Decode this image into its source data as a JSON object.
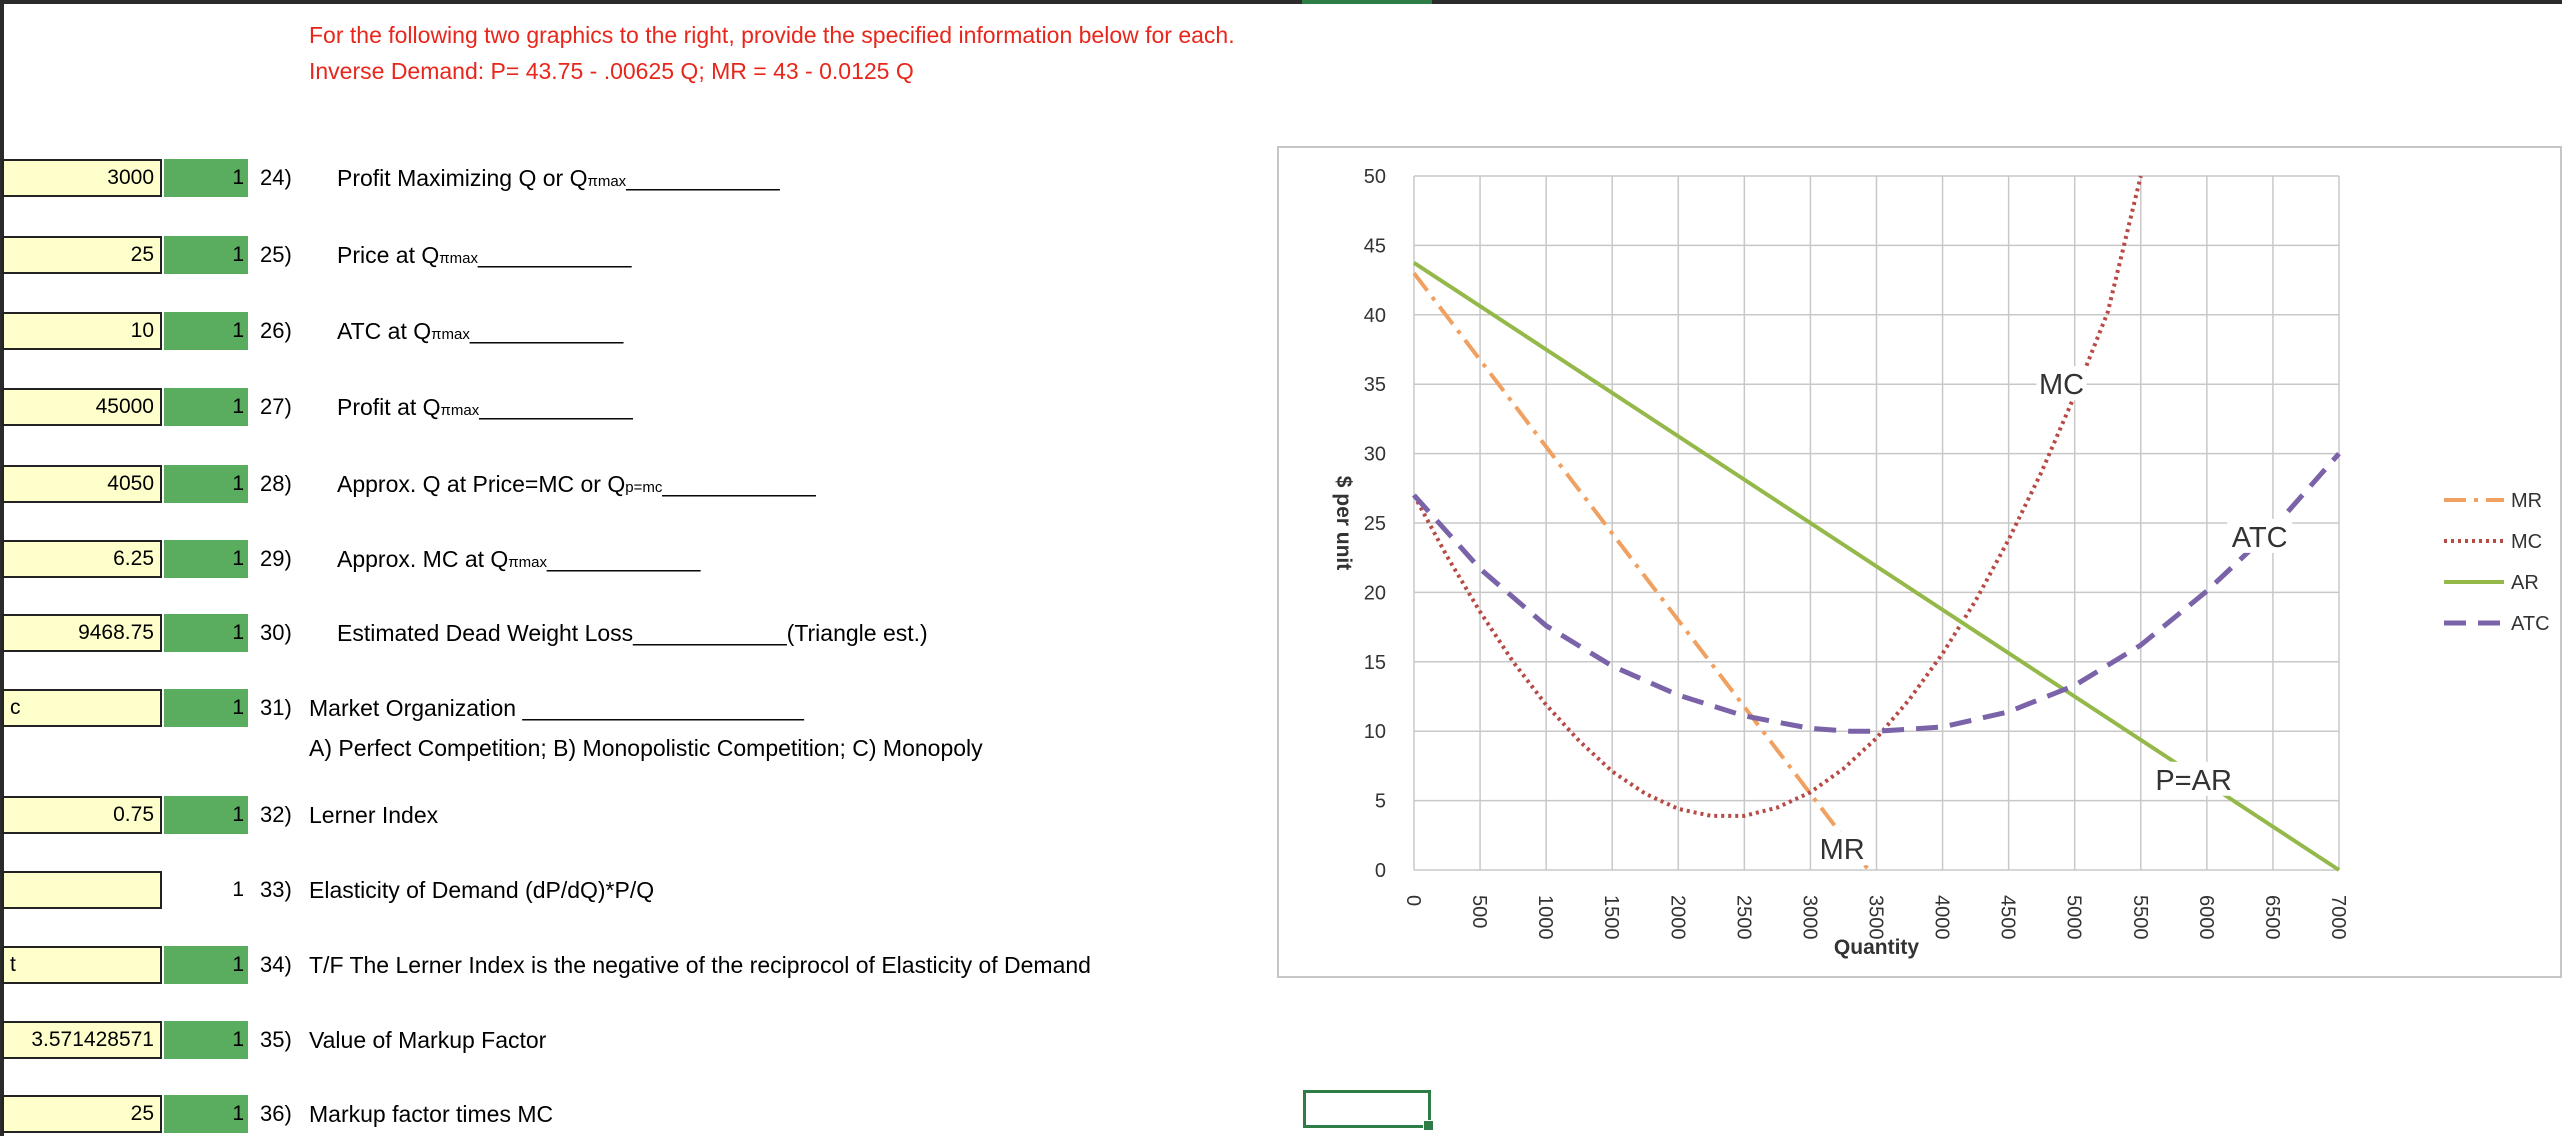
{
  "header": {
    "line1": "For the following two graphics to the right, provide the specified information below for each.",
    "line2": "Inverse Demand:  P= 43.75 - .00625 Q; MR = 43 - 0.0125 Q"
  },
  "questions": [
    {
      "answer": "3000",
      "points": "1",
      "num": "24)",
      "text": "Profit Maximizing Q or Q",
      "sub": "πmax",
      "tail": "____________"
    },
    {
      "answer": "25",
      "points": "1",
      "num": "25)",
      "text": "Price at Q",
      "sub": "πmax",
      "tail": "____________"
    },
    {
      "answer": "10",
      "points": "1",
      "num": "26)",
      "text": "ATC at Q",
      "sub": "πmax",
      "tail": "____________"
    },
    {
      "answer": "45000",
      "points": "1",
      "num": "27)",
      "text": "Profit at Q",
      "sub": "πmax",
      "tail": "____________"
    },
    {
      "answer": "4050",
      "points": "1",
      "num": "28)",
      "text": "Approx. Q at Price=MC or Q",
      "sub": "p=mc",
      "tail": "____________"
    },
    {
      "answer": "6.25",
      "points": "1",
      "num": "29)",
      "text": "Approx. MC at Q",
      "sub": "πmax",
      "tail": "____________"
    },
    {
      "answer": "9468.75",
      "points": "1",
      "num": "30)",
      "text": "Estimated Dead Weight Loss____________(Triangle est.)"
    },
    {
      "answer": "c",
      "points": "1",
      "num": "31)",
      "text": "Market Organization ______________________",
      "subline": "A) Perfect Competition; B) Monopolistic Competition; C) Monopoly"
    },
    {
      "answer": "0.75",
      "points": "1",
      "num": "32)",
      "text": "Lerner Index"
    },
    {
      "answer": "",
      "points": "1",
      "num": "33)",
      "text": "Elasticity of Demand (dP/dQ)*P/Q"
    },
    {
      "answer": "t",
      "points": "1",
      "num": "34)",
      "text": "T/F  The Lerner Index is the negative of the reciprocol of Elasticity of Demand"
    },
    {
      "answer": "3.571428571",
      "points": "1",
      "num": "35)",
      "text": "Value of Markup Factor"
    },
    {
      "answer": "25",
      "points": "1",
      "num": "36)",
      "text": "Markup factor times MC"
    }
  ],
  "chart_data": {
    "type": "line",
    "xlabel": "Quantity",
    "ylabel": "$ per unit",
    "xlim": [
      0,
      7000
    ],
    "ylim": [
      0,
      50
    ],
    "x_ticks": [
      "0",
      "500",
      "1000",
      "1500",
      "2000",
      "2500",
      "3000",
      "3500",
      "4000",
      "4500",
      "5000",
      "5500",
      "6000",
      "6500",
      "7000"
    ],
    "y_ticks": [
      "0",
      "5",
      "10",
      "15",
      "20",
      "25",
      "30",
      "35",
      "40",
      "45",
      "50"
    ],
    "grid": true,
    "legend_position": "right",
    "series": [
      {
        "name": "MR",
        "color": "#f0a060",
        "style": "dash-dot",
        "x": [
          0,
          500,
          1000,
          1500,
          2000,
          2500,
          3000,
          3440
        ],
        "y": [
          43,
          36.75,
          30.5,
          24.25,
          18,
          11.75,
          5.5,
          0
        ]
      },
      {
        "name": "MC",
        "color": "#b84a45",
        "style": "dotted",
        "x": [
          0,
          250,
          500,
          750,
          1000,
          1250,
          1500,
          1750,
          2000,
          2250,
          2500,
          2750,
          3000,
          3250,
          3500,
          3750,
          4000,
          4250,
          4500,
          4750,
          5000,
          5250,
          5500
        ],
        "y": [
          27,
          22.6,
          18.6,
          15.0,
          11.9,
          9.3,
          7.1,
          5.5,
          4.4,
          3.9,
          3.9,
          4.5,
          5.6,
          7.3,
          9.5,
          12.3,
          15.6,
          19.4,
          23.8,
          28.7,
          34.2,
          40.2,
          50
        ]
      },
      {
        "name": "AR",
        "color": "#94b94a",
        "style": "solid",
        "x": [
          0,
          7000
        ],
        "y": [
          43.75,
          0
        ]
      },
      {
        "name": "ATC",
        "color": "#7a63a8",
        "style": "dashed",
        "x": [
          0,
          500,
          1000,
          1500,
          2000,
          2500,
          3000,
          3300,
          3500,
          4000,
          4500,
          5000,
          5500,
          6000,
          6500,
          7000
        ],
        "y": [
          27,
          21.7,
          17.6,
          14.7,
          12.6,
          11.1,
          10.2,
          10,
          10,
          10.3,
          11.4,
          13.3,
          16.2,
          20.1,
          24.6,
          30
        ]
      }
    ],
    "annotations": [
      {
        "text": "MC",
        "x": 4900,
        "y": 35
      },
      {
        "text": "ATC",
        "x": 6400,
        "y": 24
      },
      {
        "text": "P=AR",
        "x": 5900,
        "y": 6.5
      },
      {
        "text": "MR",
        "x": 3240,
        "y": 1.5
      }
    ]
  }
}
